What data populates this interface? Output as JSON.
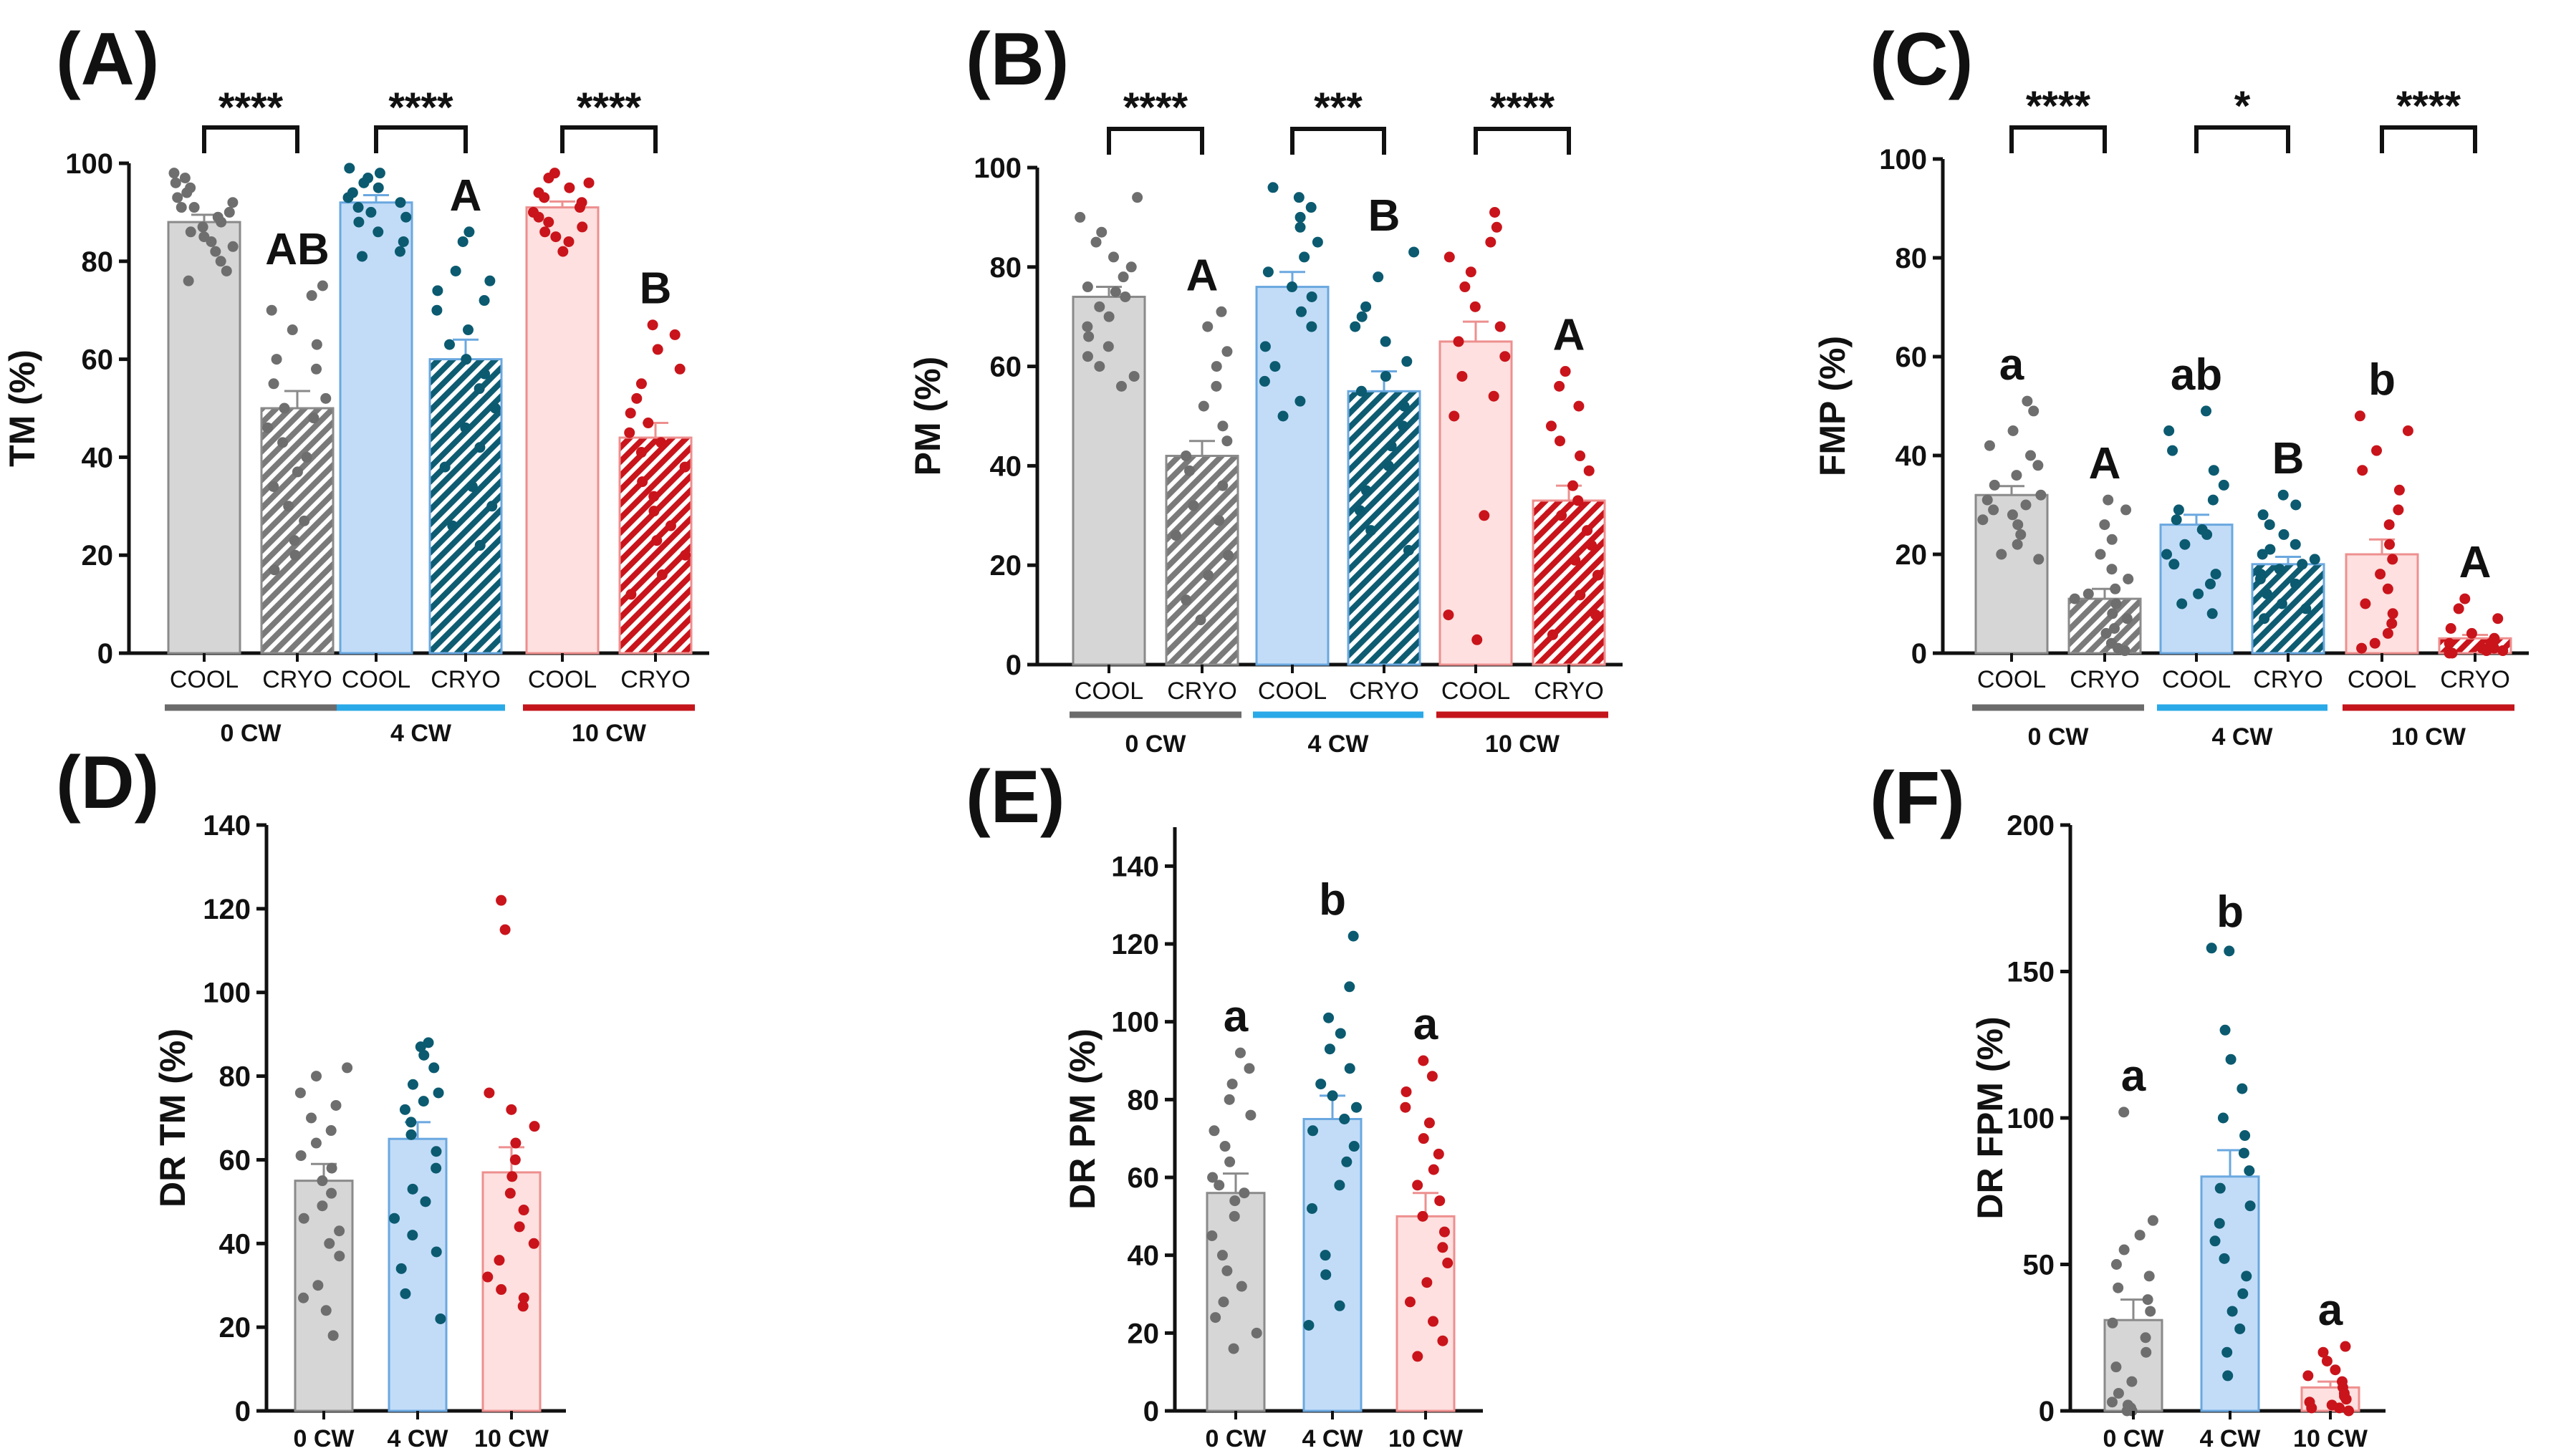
{
  "colors": {
    "cw0": {
      "dot": "#6e6e6e",
      "fill": "#d6d6d6",
      "edge": "#8a8a8a",
      "line": "#6b6b6b"
    },
    "cw4": {
      "dot": "#0b5a70",
      "fill": "#c2dcf7",
      "edge": "#6aa8e0",
      "line": "#29a9e8"
    },
    "cw10": {
      "dot": "#c9141b",
      "fill": "#fde0df",
      "edge": "#ee8f8f",
      "line": "#c4151c"
    }
  },
  "chart_data": [
    {
      "id": "A",
      "panel_label": "(A)",
      "type": "bar",
      "ylabel": "TM (%)",
      "ylim": [
        0,
        100
      ],
      "yticks": [
        "0",
        "20",
        "40",
        "60",
        "80",
        "100"
      ],
      "categories": [
        "COOL",
        "CRYO",
        "COOL",
        "CRYO",
        "COOL",
        "CRYO"
      ],
      "groups": [
        {
          "label": "0 CW",
          "color": "cw0"
        },
        {
          "label": "4 CW",
          "color": "cw4"
        },
        {
          "label": "10 CW",
          "color": "cw10"
        }
      ],
      "means": [
        88,
        50,
        92,
        60,
        91,
        44
      ],
      "sem": [
        1.5,
        3.5,
        1.5,
        4.0,
        1.2,
        3.0
      ],
      "hatched": [
        false,
        true,
        false,
        true,
        false,
        true
      ],
      "points": [
        [
          98,
          97,
          96,
          95,
          94,
          93,
          92,
          91,
          91,
          90,
          89,
          88,
          87,
          86,
          85,
          84,
          83,
          82,
          80,
          78,
          76
        ],
        [
          75,
          73,
          70,
          66,
          63,
          60,
          58,
          55,
          52,
          50,
          48,
          46,
          43,
          40,
          37,
          34,
          30,
          27,
          23,
          20,
          17
        ],
        [
          99,
          98,
          97,
          96,
          95,
          94,
          93,
          92,
          91,
          90,
          89,
          88,
          86,
          84,
          82,
          81
        ],
        [
          86,
          84,
          78,
          76,
          74,
          72,
          70,
          66,
          63,
          60,
          57,
          54,
          50,
          46,
          42,
          38,
          34,
          30,
          26,
          22
        ],
        [
          98,
          97,
          96,
          95,
          94,
          93,
          92,
          91,
          90,
          89,
          88,
          87,
          86,
          85,
          84,
          82
        ],
        [
          67,
          65,
          62,
          58,
          55,
          52,
          49,
          47,
          45,
          43,
          41,
          38,
          35,
          32,
          29,
          26,
          23,
          20,
          16,
          12
        ]
      ],
      "sig": [
        {
          "group": 0,
          "text": "****"
        },
        {
          "group": 1,
          "text": "****"
        },
        {
          "group": 2,
          "text": "****"
        }
      ],
      "letters": [
        {
          "bar": 1,
          "text": "AB"
        },
        {
          "bar": 3,
          "text": "A"
        },
        {
          "bar": 5,
          "text": "B"
        }
      ]
    },
    {
      "id": "B",
      "panel_label": "(B)",
      "type": "bar",
      "ylabel": "PM (%)",
      "ylim": [
        0,
        100
      ],
      "yticks": [
        "0",
        "20",
        "40",
        "60",
        "80",
        "100"
      ],
      "categories": [
        "COOL",
        "CRYO",
        "COOL",
        "CRYO",
        "COOL",
        "CRYO"
      ],
      "groups": [
        {
          "label": "0 CW",
          "color": "cw0"
        },
        {
          "label": "4 CW",
          "color": "cw4"
        },
        {
          "label": "10 CW",
          "color": "cw10"
        }
      ],
      "means": [
        74,
        42,
        76,
        55,
        65,
        33
      ],
      "sem": [
        2.0,
        3.0,
        3.0,
        4.0,
        4.0,
        3.0
      ],
      "hatched": [
        false,
        true,
        false,
        true,
        false,
        true
      ],
      "points": [
        [
          94,
          90,
          87,
          85,
          82,
          80,
          78,
          76,
          75,
          74,
          72,
          70,
          68,
          66,
          64,
          62,
          60,
          58,
          56
        ],
        [
          71,
          68,
          63,
          60,
          56,
          52,
          48,
          45,
          42,
          39,
          36,
          32,
          29,
          26,
          22,
          18,
          13,
          9
        ],
        [
          96,
          94,
          92,
          90,
          88,
          85,
          82,
          79,
          76,
          74,
          71,
          68,
          64,
          60,
          57,
          53,
          50
        ],
        [
          83,
          78,
          72,
          70,
          68,
          65,
          61,
          58,
          55,
          52,
          48,
          44,
          40,
          35,
          31,
          27,
          23
        ],
        [
          91,
          88,
          85,
          82,
          79,
          76,
          72,
          68,
          65,
          62,
          58,
          54,
          50,
          30,
          10,
          5
        ],
        [
          59,
          56,
          52,
          48,
          45,
          42,
          39,
          36,
          33,
          30,
          27,
          24,
          21,
          18,
          14,
          10,
          6
        ]
      ],
      "sig": [
        {
          "group": 0,
          "text": "****"
        },
        {
          "group": 1,
          "text": "***"
        },
        {
          "group": 2,
          "text": "****"
        }
      ],
      "letters": [
        {
          "bar": 1,
          "text": "A"
        },
        {
          "bar": 3,
          "text": "B"
        },
        {
          "bar": 5,
          "text": "A"
        }
      ]
    },
    {
      "id": "C",
      "panel_label": "(C)",
      "type": "bar",
      "ylabel": "FMP (%)",
      "ylim": [
        0,
        100
      ],
      "yticks": [
        "0",
        "20",
        "40",
        "60",
        "80",
        "100"
      ],
      "categories": [
        "COOL",
        "CRYO",
        "COOL",
        "CRYO",
        "COOL",
        "CRYO"
      ],
      "groups": [
        {
          "label": "0 CW",
          "color": "cw0"
        },
        {
          "label": "4 CW",
          "color": "cw4"
        },
        {
          "label": "10 CW",
          "color": "cw10"
        }
      ],
      "means": [
        32,
        11,
        26,
        18,
        20,
        3
      ],
      "sem": [
        1.8,
        2.0,
        2.0,
        1.5,
        3.0,
        0.7
      ],
      "hatched": [
        false,
        true,
        false,
        true,
        false,
        true
      ],
      "points": [
        [
          51,
          49,
          45,
          42,
          40,
          38,
          36,
          34,
          32,
          31,
          30,
          29,
          28,
          27,
          26,
          24,
          22,
          20,
          19
        ],
        [
          31,
          29,
          26,
          23,
          20,
          17,
          15,
          13,
          12,
          11,
          10,
          8,
          7,
          5,
          4,
          2,
          1,
          0.5
        ],
        [
          49,
          45,
          41,
          37,
          34,
          31,
          29,
          27,
          25,
          24,
          22,
          20,
          18,
          16,
          14,
          12,
          10,
          8
        ],
        [
          32,
          30,
          28,
          26,
          24,
          22,
          21,
          20,
          19,
          18,
          17,
          16,
          15,
          14,
          12,
          10,
          9,
          7
        ],
        [
          48,
          45,
          41,
          37,
          33,
          29,
          26,
          22,
          19,
          16,
          13,
          10,
          8,
          6,
          4,
          2,
          1
        ],
        [
          11,
          9,
          7,
          5,
          4,
          3,
          2,
          2,
          1,
          1,
          0.5,
          0.5,
          0,
          0
        ]
      ],
      "sig": [
        {
          "group": 0,
          "text": "****"
        },
        {
          "group": 1,
          "text": "*"
        },
        {
          "group": 2,
          "text": "****"
        }
      ],
      "letters": [
        {
          "bar": 0,
          "text": "a"
        },
        {
          "bar": 1,
          "text": "A"
        },
        {
          "bar": 2,
          "text": "ab"
        },
        {
          "bar": 3,
          "text": "B"
        },
        {
          "bar": 4,
          "text": "b"
        },
        {
          "bar": 5,
          "text": "A"
        }
      ]
    },
    {
      "id": "D",
      "panel_label": "(D)",
      "type": "bar",
      "ylabel": "DR TM (%)",
      "ylim": [
        0,
        140
      ],
      "yticks": [
        "0",
        "20",
        "40",
        "60",
        "80",
        "100",
        "120",
        "140"
      ],
      "categories": [
        "0 CW",
        "4 CW",
        "10 CW"
      ],
      "bar_colors": [
        "cw0",
        "cw4",
        "cw10"
      ],
      "means": [
        55,
        65,
        57
      ],
      "sem": [
        4.0,
        4.0,
        6.0
      ],
      "points": [
        [
          82,
          80,
          76,
          73,
          70,
          67,
          64,
          61,
          58,
          55,
          52,
          49,
          46,
          43,
          40,
          37,
          30,
          27,
          24,
          18
        ],
        [
          88,
          87,
          85,
          82,
          78,
          76,
          74,
          72,
          69,
          66,
          62,
          58,
          53,
          50,
          46,
          42,
          38,
          34,
          28,
          22
        ],
        [
          122,
          115,
          76,
          72,
          68,
          64,
          60,
          56,
          52,
          48,
          44,
          40,
          36,
          32,
          29,
          27,
          25
        ]
      ],
      "letters": []
    },
    {
      "id": "E",
      "panel_label": "(E)",
      "type": "bar",
      "ylabel": "DR PM (%)",
      "ylim": [
        0,
        150
      ],
      "yticks": [
        "0",
        "20",
        "40",
        "60",
        "80",
        "100",
        "120",
        "140"
      ],
      "categories": [
        "0 CW",
        "4 CW",
        "10 CW"
      ],
      "bar_colors": [
        "cw0",
        "cw4",
        "cw10"
      ],
      "means": [
        56,
        75,
        50
      ],
      "sem": [
        5.0,
        6.0,
        6.0
      ],
      "points": [
        [
          92,
          88,
          84,
          80,
          76,
          72,
          68,
          64,
          60,
          58,
          56,
          54,
          50,
          45,
          40,
          36,
          32,
          28,
          24,
          20,
          16
        ],
        [
          122,
          109,
          101,
          97,
          93,
          88,
          84,
          81,
          78,
          75,
          72,
          68,
          64,
          58,
          52,
          40,
          35,
          27,
          22
        ],
        [
          90,
          86,
          82,
          78,
          74,
          70,
          66,
          62,
          58,
          54,
          50,
          46,
          42,
          38,
          33,
          28,
          23,
          18,
          14
        ]
      ],
      "letters": [
        {
          "bar": 0,
          "text": "a"
        },
        {
          "bar": 1,
          "text": "b"
        },
        {
          "bar": 2,
          "text": "a"
        }
      ]
    },
    {
      "id": "F",
      "panel_label": "(F)",
      "type": "bar",
      "ylabel": "DR FPM (%)",
      "ylim": [
        0,
        200
      ],
      "yticks": [
        "0",
        "50",
        "100",
        "150",
        "200"
      ],
      "categories": [
        "0 CW",
        "4 CW",
        "10 CW"
      ],
      "bar_colors": [
        "cw0",
        "cw4",
        "cw10"
      ],
      "means": [
        31,
        80,
        8
      ],
      "sem": [
        7.0,
        9.0,
        2.0
      ],
      "points": [
        [
          102,
          65,
          60,
          55,
          50,
          46,
          42,
          38,
          34,
          30,
          25,
          20,
          15,
          10,
          6,
          3,
          2,
          1,
          0,
          0
        ],
        [
          158,
          157,
          130,
          120,
          110,
          100,
          94,
          88,
          82,
          76,
          70,
          64,
          58,
          52,
          46,
          40,
          34,
          28,
          20,
          12
        ],
        [
          22,
          20,
          17,
          14,
          12,
          10,
          8,
          6,
          5,
          4,
          3,
          2,
          1,
          1,
          0
        ]
      ],
      "letters": [
        {
          "bar": 0,
          "text": "a"
        },
        {
          "bar": 1,
          "text": "b"
        },
        {
          "bar": 2,
          "text": "a"
        }
      ]
    }
  ]
}
